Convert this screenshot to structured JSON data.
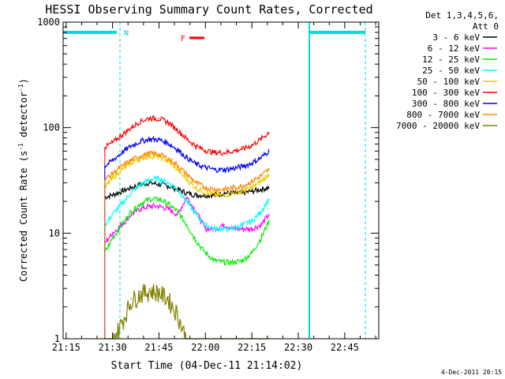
{
  "chart_data": {
    "type": "line",
    "title": "HESSI Observing Summary Count Rates, Corrected",
    "xlabel": "Start Time (04-Dec-11 21:14:02)",
    "ylabel_main": "Corrected Count Rate (s",
    "ylabel_sup1": "-1",
    "ylabel_mid": " detector",
    "ylabel_sup2": "-1",
    "ylabel_end": ")",
    "x_ticks": [
      "21:15",
      "21:30",
      "21:45",
      "22:00",
      "22:15",
      "22:30",
      "22:45"
    ],
    "x_tick_minutes": [
      15,
      30,
      45,
      60,
      75,
      90,
      105
    ],
    "xlim_minutes": [
      14.0333,
      116
    ],
    "yscale": "log",
    "ylim": [
      1,
      1000
    ],
    "y_ticks": [
      "1",
      "10",
      "100",
      "1000"
    ],
    "y_tick_values": [
      1,
      10,
      100,
      1000
    ],
    "legend_header": [
      "Det 1,3,4,5,6,",
      "Att 0"
    ],
    "flag_labels": {
      "night": "N",
      "flare": "F"
    },
    "timestamp": "4-Dec-2011 20:15",
    "x_sample_minutes": [
      27.5,
      30,
      33,
      36,
      39,
      42,
      45,
      48,
      51,
      54,
      57,
      60,
      63,
      66,
      69,
      72,
      75,
      78,
      80.5
    ],
    "series": [
      {
        "name": "3 - 6 keV",
        "color": "#000000",
        "values": [
          22,
          23,
          25,
          27,
          29,
          30,
          29,
          28,
          26,
          24,
          23,
          23,
          23,
          24,
          24,
          24,
          25,
          26,
          27
        ]
      },
      {
        "name": "6 - 12 keV",
        "color": "#ff00ff",
        "values": [
          8,
          10,
          12,
          15,
          17,
          18,
          18,
          17,
          15,
          22,
          16,
          11,
          11,
          12,
          11,
          11,
          11,
          12,
          15
        ]
      },
      {
        "name": "12 - 25 keV",
        "color": "#00ee00",
        "values": [
          6.5,
          9,
          12,
          16,
          19,
          21,
          21,
          19,
          16,
          12,
          8.5,
          6.5,
          5.5,
          5.3,
          5.3,
          5.5,
          6.5,
          9,
          13
        ]
      },
      {
        "name": "25 - 50 keV",
        "color": "#00ffff",
        "values": [
          12,
          15,
          19,
          24,
          29,
          32,
          33,
          30,
          26,
          20,
          15,
          12,
          11,
          11,
          11,
          12,
          13,
          16,
          21
        ]
      },
      {
        "name": "50 - 100 keV",
        "color": "#eecc00",
        "values": [
          27,
          33,
          40,
          46,
          51,
          54,
          53,
          48,
          40,
          32,
          27,
          24,
          23,
          23,
          24,
          25,
          27,
          31,
          36
        ]
      },
      {
        "name": "100 - 300 keV",
        "color": "#ff0000",
        "values": [
          65,
          72,
          85,
          100,
          115,
          123,
          122,
          112,
          95,
          78,
          67,
          61,
          58,
          58,
          60,
          63,
          68,
          78,
          90
        ]
      },
      {
        "name": "300 - 800 keV",
        "color": "#0000ff",
        "values": [
          43,
          49,
          58,
          67,
          74,
          78,
          77,
          71,
          62,
          52,
          45,
          42,
          40,
          40,
          41,
          43,
          46,
          52,
          60
        ]
      },
      {
        "name": "800 - 7000 keV",
        "color": "#ff8800",
        "values": [
          32,
          37,
          43,
          49,
          54,
          57,
          56,
          51,
          44,
          36,
          30,
          27,
          26,
          26,
          27,
          28,
          31,
          35,
          40
        ]
      },
      {
        "name": "7000 - 20000 keV",
        "color": "#808000",
        "values": [
          1,
          1,
          1.5,
          2.4,
          2.8,
          3.0,
          2.9,
          2.5,
          1.8,
          1,
          1,
          1,
          1,
          1,
          1,
          1,
          1,
          1,
          1
        ]
      }
    ]
  }
}
